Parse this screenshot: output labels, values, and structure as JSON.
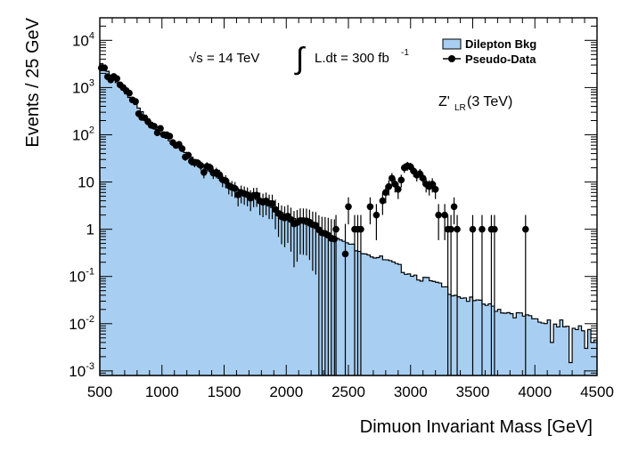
{
  "chart_data": {
    "type": "histogram-with-points",
    "yscale": "log",
    "xlabel": "Dimuon Invariant Mass [GeV]",
    "ylabel": "Events / 25 GeV",
    "xlim": [
      500,
      4500
    ],
    "ylim": [
      0.0008,
      30000
    ],
    "bin_width": 25,
    "x_tick_labels": [
      "500",
      "1000",
      "1500",
      "2000",
      "2500",
      "3000",
      "3500",
      "4000",
      "4500"
    ],
    "x_tick_values": [
      500,
      1000,
      1500,
      2000,
      2500,
      3000,
      3500,
      4000,
      4500
    ],
    "y_ticks": [
      {
        "value": 0.001,
        "mantissa": "10",
        "exp": "-3"
      },
      {
        "value": 0.01,
        "mantissa": "10",
        "exp": "-2"
      },
      {
        "value": 0.1,
        "mantissa": "10",
        "exp": "-1"
      },
      {
        "value": 1,
        "mantissa": "1",
        "exp": ""
      },
      {
        "value": 10,
        "mantissa": "10",
        "exp": ""
      },
      {
        "value": 100,
        "mantissa": "10",
        "exp": "2"
      },
      {
        "value": 1000,
        "mantissa": "10",
        "exp": "3"
      },
      {
        "value": 10000,
        "mantissa": "10",
        "exp": "4"
      }
    ],
    "annotations": {
      "sqrt_s_symbol": "√s",
      "energy": " = 14 TeV",
      "integral": "∫",
      "lumi": "L.dt = 300 fb",
      "lumi_exp": "-1",
      "signal_main": "Z'",
      "signal_sub": "LR",
      "signal_mass": " (3 TeV)"
    },
    "series": [
      {
        "name": "Dilepton Bkg",
        "style": "filled-step",
        "color": "#a8cff2",
        "background_model": {
          "knots_mass": [
            500,
            700,
            1000,
            1500,
            2000,
            2500,
            3000,
            3500,
            4000,
            4500
          ],
          "knots_events": [
            3500,
            800,
            100,
            10,
            2,
            0.5,
            0.12,
            0.03,
            0.012,
            0.005
          ]
        },
        "tail_values": [
          {
            "mass": 4100,
            "events": 0.012
          },
          {
            "mass": 4125,
            "events": 0.004
          },
          {
            "mass": 4150,
            "events": 0.0098
          },
          {
            "mass": 4200,
            "events": 0.012
          },
          {
            "mass": 4275,
            "events": 0.0015
          },
          {
            "mass": 4300,
            "events": 0.008
          },
          {
            "mass": 4350,
            "events": 0.009
          },
          {
            "mass": 4400,
            "events": 0.003
          },
          {
            "mass": 4425,
            "events": 0.0075
          },
          {
            "mass": 4450,
            "events": 0.004
          }
        ]
      },
      {
        "name": "Pseudo-Data",
        "style": "points-with-errors",
        "color": "#000000",
        "points_follow_background_until": 2375,
        "high_mass_points": [
          {
            "mass": 2400,
            "events": 1
          },
          {
            "mass": 2475,
            "events": 0.3
          },
          {
            "mass": 2500,
            "events": 3
          },
          {
            "mass": 2550,
            "events": 1
          },
          {
            "mass": 2575,
            "events": 1
          },
          {
            "mass": 2600,
            "events": 1
          },
          {
            "mass": 2675,
            "events": 3
          },
          {
            "mass": 2725,
            "events": 2
          },
          {
            "mass": 2775,
            "events": 4
          },
          {
            "mass": 2800,
            "events": 6
          },
          {
            "mass": 2825,
            "events": 8
          },
          {
            "mass": 2850,
            "events": 12
          },
          {
            "mass": 2875,
            "events": 9
          },
          {
            "mass": 2900,
            "events": 7
          },
          {
            "mass": 2925,
            "events": 11
          },
          {
            "mass": 2950,
            "events": 20
          },
          {
            "mass": 2975,
            "events": 22
          },
          {
            "mass": 3000,
            "events": 21
          },
          {
            "mass": 3025,
            "events": 17
          },
          {
            "mass": 3050,
            "events": 14
          },
          {
            "mass": 3075,
            "events": 15
          },
          {
            "mass": 3100,
            "events": 12
          },
          {
            "mass": 3125,
            "events": 9
          },
          {
            "mass": 3150,
            "events": 8
          },
          {
            "mass": 3175,
            "events": 9
          },
          {
            "mass": 3200,
            "events": 7
          },
          {
            "mass": 3225,
            "events": 2
          },
          {
            "mass": 3275,
            "events": 2
          },
          {
            "mass": 3300,
            "events": 1
          },
          {
            "mass": 3325,
            "events": 1
          },
          {
            "mass": 3350,
            "events": 3
          },
          {
            "mass": 3375,
            "events": 1
          },
          {
            "mass": 3500,
            "events": 1
          },
          {
            "mass": 3575,
            "events": 1
          },
          {
            "mass": 3650,
            "events": 1
          },
          {
            "mass": 3675,
            "events": 1
          },
          {
            "mass": 3925,
            "events": 1
          }
        ]
      }
    ],
    "legend": {
      "position": "top-right",
      "entries": [
        "Dilepton Bkg",
        "Pseudo-Data"
      ]
    }
  }
}
